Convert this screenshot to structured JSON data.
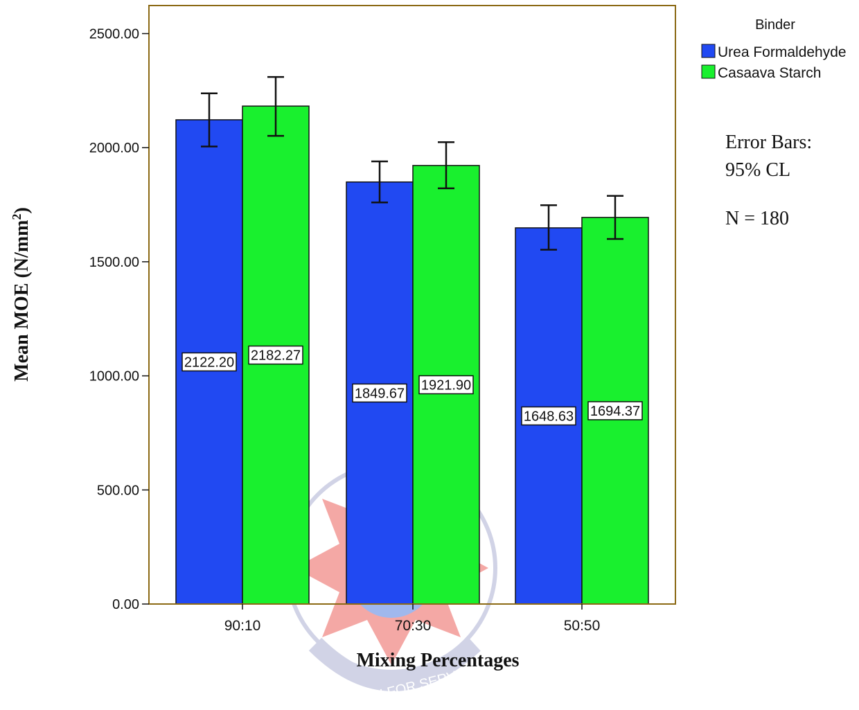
{
  "chart_data": {
    "type": "bar",
    "title": "",
    "xlabel": "Mixing Percentages",
    "ylabel": "Mean MOE (N/mm",
    "ylabel_sup": "2",
    "ylabel_close": ")",
    "categories": [
      "90:10",
      "70:30",
      "50:50"
    ],
    "series": [
      {
        "name": "Urea Formaldehyde",
        "color": "#2149f2",
        "values": [
          2122.2,
          1849.67,
          1648.63
        ],
        "value_labels": [
          "2122.20",
          "1849.67",
          "1648.63"
        ],
        "ci_low": [
          2005,
          1760,
          1553
        ],
        "ci_high": [
          2238,
          1940,
          1748
        ]
      },
      {
        "name": "Casaava Starch",
        "color": "#19f02e",
        "values": [
          2182.27,
          1921.9,
          1694.37
        ],
        "value_labels": [
          "2182.27",
          "1921.90",
          "1694.37"
        ],
        "ci_low": [
          2052,
          1822,
          1600
        ],
        "ci_high": [
          2310,
          2024,
          1789
        ]
      }
    ],
    "ylim": [
      0,
      2632
    ],
    "yticks": [
      0,
      500,
      1000,
      1500,
      2000,
      2500
    ],
    "ytick_labels": [
      "0.00",
      "500.00",
      "1000.00",
      "1500.00",
      "2000.00",
      "2500.00"
    ],
    "legend_title": "Binder",
    "legend_position": "top-right outside plot",
    "grid": false,
    "plot_border_color": "#8b6914"
  },
  "notes": {
    "error_bars_line1": "Error Bars:",
    "error_bars_line2": "95% CL",
    "n_label": "N = 180"
  },
  "watermark": {
    "motto": "EDUCATION FOR SERVICE",
    "colors": [
      "#e8413a",
      "#2f63d8",
      "#9aa0c8"
    ]
  }
}
